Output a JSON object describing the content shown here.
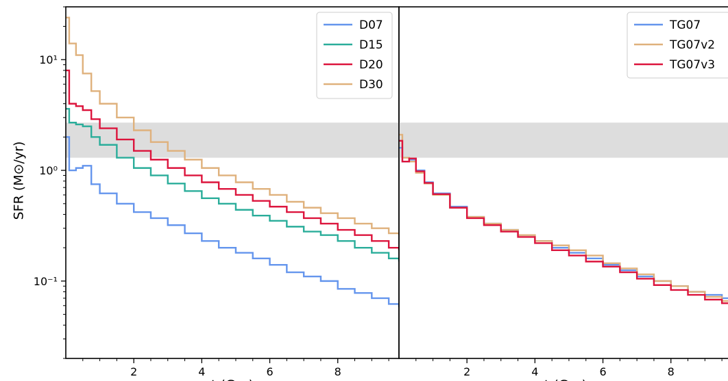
{
  "figure": {
    "ylabel": "SFR (M⊙/yr)",
    "shared_y": true
  },
  "chart_data": [
    {
      "type": "line",
      "drawstyle": "steps",
      "xlabel": "t (Gyr)",
      "ylabel": "SFR (M⊙/yr)",
      "yscale": "log",
      "xlim": [
        0,
        9.8
      ],
      "ylim": [
        0.02,
        30
      ],
      "x_ticks": [
        2,
        4,
        6,
        8
      ],
      "x_tick_labels": [
        "2",
        "4",
        "6",
        "8"
      ],
      "y_ticks": [
        0.1,
        1,
        10
      ],
      "y_tick_labels": [
        "10⁻¹",
        "10⁰",
        "10¹"
      ],
      "shaded_band": {
        "y": [
          1.3,
          2.7
        ],
        "color": "#dddddd"
      },
      "legend": "top-right",
      "grid": false,
      "series": [
        {
          "name": "D07",
          "color": "#6495ed",
          "x": [
            0.02,
            0.1,
            0.3,
            0.5,
            0.75,
            1,
            1.5,
            2,
            2.5,
            3,
            3.5,
            4,
            4.5,
            5,
            5.5,
            6,
            6.5,
            7,
            7.5,
            8,
            8.5,
            9,
            9.5,
            9.8
          ],
          "y": [
            2.0,
            1.0,
            1.05,
            1.1,
            0.75,
            0.62,
            0.5,
            0.42,
            0.37,
            0.32,
            0.27,
            0.23,
            0.2,
            0.18,
            0.16,
            0.14,
            0.12,
            0.11,
            0.1,
            0.085,
            0.078,
            0.07,
            0.062,
            0.058
          ]
        },
        {
          "name": "D15",
          "color": "#2aad9a",
          "x": [
            0.02,
            0.1,
            0.3,
            0.5,
            0.75,
            1,
            1.5,
            2,
            2.5,
            3,
            3.5,
            4,
            4.5,
            5,
            5.5,
            6,
            6.5,
            7,
            7.5,
            8,
            8.5,
            9,
            9.5,
            9.8
          ],
          "y": [
            3.6,
            2.7,
            2.6,
            2.5,
            2.0,
            1.7,
            1.3,
            1.05,
            0.9,
            0.76,
            0.65,
            0.56,
            0.5,
            0.44,
            0.39,
            0.35,
            0.31,
            0.28,
            0.26,
            0.23,
            0.2,
            0.18,
            0.16,
            0.15
          ]
        },
        {
          "name": "D20",
          "color": "#dc143c",
          "x": [
            0.02,
            0.1,
            0.3,
            0.5,
            0.75,
            1,
            1.5,
            2,
            2.5,
            3,
            3.5,
            4,
            4.5,
            5,
            5.5,
            6,
            6.5,
            7,
            7.5,
            8,
            8.5,
            9,
            9.5,
            9.8
          ],
          "y": [
            8.0,
            4.0,
            3.8,
            3.5,
            2.9,
            2.4,
            1.9,
            1.5,
            1.25,
            1.05,
            0.9,
            0.78,
            0.68,
            0.6,
            0.53,
            0.47,
            0.42,
            0.37,
            0.33,
            0.29,
            0.26,
            0.23,
            0.2,
            0.19
          ]
        },
        {
          "name": "D30",
          "color": "#dfb17c",
          "x": [
            0.02,
            0.1,
            0.3,
            0.5,
            0.75,
            1,
            1.5,
            2,
            2.5,
            3,
            3.5,
            4,
            4.5,
            5,
            5.5,
            6,
            6.5,
            7,
            7.5,
            8,
            8.5,
            9,
            9.5,
            9.8
          ],
          "y": [
            24.0,
            14.0,
            11.0,
            7.5,
            5.2,
            4.0,
            3.0,
            2.3,
            1.8,
            1.5,
            1.25,
            1.05,
            0.9,
            0.78,
            0.68,
            0.6,
            0.52,
            0.46,
            0.41,
            0.37,
            0.33,
            0.3,
            0.27,
            0.26
          ]
        }
      ]
    },
    {
      "type": "line",
      "drawstyle": "steps",
      "xlabel": "t (Gyr)",
      "yscale": "log",
      "xlim": [
        0,
        9.8
      ],
      "ylim": [
        0.02,
        30
      ],
      "x_ticks": [
        2,
        4,
        6,
        8
      ],
      "x_tick_labels": [
        "2",
        "4",
        "6",
        "8"
      ],
      "shaded_band": {
        "y": [
          1.3,
          2.7
        ],
        "color": "#dddddd"
      },
      "legend": "top-right",
      "grid": false,
      "series": [
        {
          "name": "TG07",
          "color": "#6495ed",
          "x": [
            0.02,
            0.1,
            0.3,
            0.5,
            0.75,
            1,
            1.5,
            2,
            2.5,
            3,
            3.5,
            4,
            4.5,
            5,
            5.5,
            6,
            6.5,
            7,
            7.5,
            8,
            8.5,
            9,
            9.5,
            9.8
          ],
          "y": [
            1.6,
            1.2,
            1.25,
            1.0,
            0.78,
            0.62,
            0.47,
            0.38,
            0.33,
            0.29,
            0.26,
            0.23,
            0.2,
            0.18,
            0.16,
            0.14,
            0.125,
            0.11,
            0.1,
            0.09,
            0.08,
            0.075,
            0.07,
            0.068
          ]
        },
        {
          "name": "TG07v2",
          "color": "#dfb17c",
          "x": [
            0.02,
            0.1,
            0.3,
            0.5,
            0.75,
            1,
            1.5,
            2,
            2.5,
            3,
            3.5,
            4,
            4.5,
            5,
            5.5,
            6,
            6.5,
            7,
            7.5,
            8,
            8.5,
            9,
            9.5,
            9.8
          ],
          "y": [
            2.1,
            1.3,
            1.2,
            0.95,
            0.76,
            0.6,
            0.46,
            0.38,
            0.33,
            0.29,
            0.26,
            0.23,
            0.21,
            0.19,
            0.17,
            0.145,
            0.13,
            0.115,
            0.1,
            0.09,
            0.08,
            0.072,
            0.066,
            0.06
          ]
        },
        {
          "name": "TG07v3",
          "color": "#dc143c",
          "x": [
            0.02,
            0.1,
            0.3,
            0.5,
            0.75,
            1,
            1.5,
            2,
            2.5,
            3,
            3.5,
            4,
            4.5,
            5,
            5.5,
            6,
            6.5,
            7,
            7.5,
            8,
            8.5,
            9,
            9.5,
            9.8
          ],
          "y": [
            1.85,
            1.2,
            1.28,
            0.98,
            0.77,
            0.61,
            0.46,
            0.37,
            0.32,
            0.28,
            0.25,
            0.22,
            0.19,
            0.17,
            0.15,
            0.135,
            0.12,
            0.105,
            0.092,
            0.083,
            0.075,
            0.068,
            0.063,
            0.06
          ]
        }
      ]
    }
  ]
}
